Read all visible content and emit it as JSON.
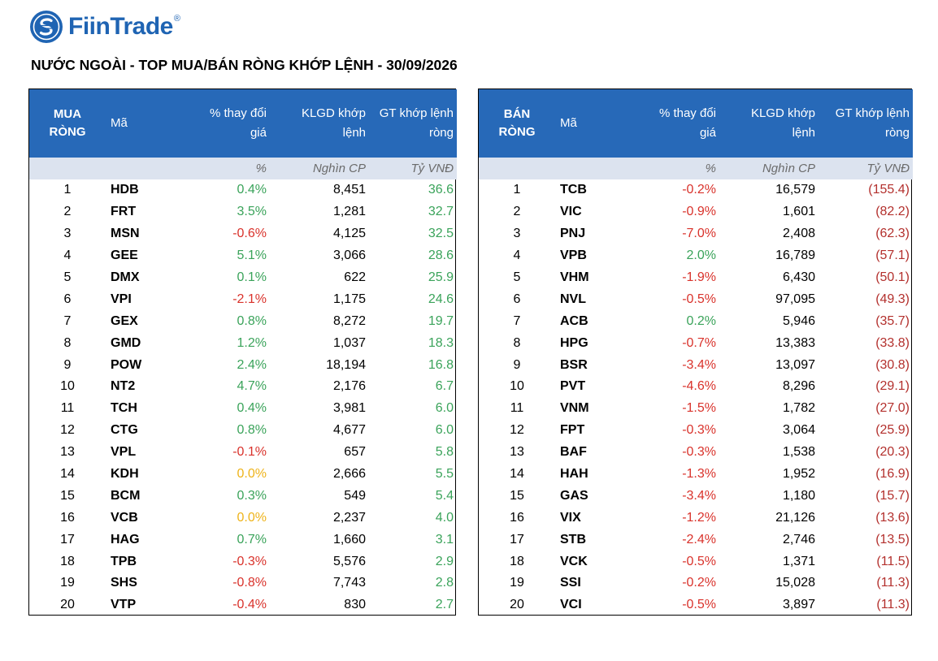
{
  "brand": {
    "name": "FiinTrade",
    "registered_mark": "®"
  },
  "report_title": "NƯỚC NGOÀI - TOP MUA/BÁN RÒNG KHỚP LỆNH - 30/09/2026",
  "colors": {
    "header_bg": "#2769b8",
    "units_bg": "#dce3ef",
    "positive": "#3aa35a",
    "negative": "#d9322b",
    "unchanged": "#eeb31a",
    "sell_value": "#b3302d",
    "brand": "#1f64b3"
  },
  "buy": {
    "headers": {
      "rank_line1": "MUA",
      "rank_line2": "RÒNG",
      "code": "Mã",
      "pct_line1": "% thay đổi",
      "pct_line2": "giá",
      "vol_line1": "KLGD khớp",
      "vol_line2": "lệnh",
      "val_line1": "GT khớp lệnh",
      "val_line2": "ròng"
    },
    "units": {
      "pct": "%",
      "vol": "Nghìn CP",
      "val": "Tỷ VNĐ"
    },
    "rows": [
      {
        "rank": "1",
        "code": "HDB",
        "pct": "0.4%",
        "dir": "pos",
        "vol": "8,451",
        "val": "36.6"
      },
      {
        "rank": "2",
        "code": "FRT",
        "pct": "3.5%",
        "dir": "pos",
        "vol": "1,281",
        "val": "32.7"
      },
      {
        "rank": "3",
        "code": "MSN",
        "pct": "-0.6%",
        "dir": "neg",
        "vol": "4,125",
        "val": "32.5"
      },
      {
        "rank": "4",
        "code": "GEE",
        "pct": "5.1%",
        "dir": "pos",
        "vol": "3,066",
        "val": "28.6"
      },
      {
        "rank": "5",
        "code": "DMX",
        "pct": "0.1%",
        "dir": "pos",
        "vol": "622",
        "val": "25.9"
      },
      {
        "rank": "6",
        "code": "VPI",
        "pct": "-2.1%",
        "dir": "neg",
        "vol": "1,175",
        "val": "24.6"
      },
      {
        "rank": "7",
        "code": "GEX",
        "pct": "0.8%",
        "dir": "pos",
        "vol": "8,272",
        "val": "19.7"
      },
      {
        "rank": "8",
        "code": "GMD",
        "pct": "1.2%",
        "dir": "pos",
        "vol": "1,037",
        "val": "18.3"
      },
      {
        "rank": "9",
        "code": "POW",
        "pct": "2.4%",
        "dir": "pos",
        "vol": "18,194",
        "val": "16.8"
      },
      {
        "rank": "10",
        "code": "NT2",
        "pct": "4.7%",
        "dir": "pos",
        "vol": "2,176",
        "val": "6.7"
      },
      {
        "rank": "11",
        "code": "TCH",
        "pct": "0.4%",
        "dir": "pos",
        "vol": "3,981",
        "val": "6.0"
      },
      {
        "rank": "12",
        "code": "CTG",
        "pct": "0.8%",
        "dir": "pos",
        "vol": "4,677",
        "val": "6.0"
      },
      {
        "rank": "13",
        "code": "VPL",
        "pct": "-0.1%",
        "dir": "neg",
        "vol": "657",
        "val": "5.8"
      },
      {
        "rank": "14",
        "code": "KDH",
        "pct": "0.0%",
        "dir": "zero",
        "vol": "2,666",
        "val": "5.5"
      },
      {
        "rank": "15",
        "code": "BCM",
        "pct": "0.3%",
        "dir": "pos",
        "vol": "549",
        "val": "5.4"
      },
      {
        "rank": "16",
        "code": "VCB",
        "pct": "0.0%",
        "dir": "zero",
        "vol": "2,237",
        "val": "4.0"
      },
      {
        "rank": "17",
        "code": "HAG",
        "pct": "0.7%",
        "dir": "pos",
        "vol": "1,660",
        "val": "3.1"
      },
      {
        "rank": "18",
        "code": "TPB",
        "pct": "-0.3%",
        "dir": "neg",
        "vol": "5,576",
        "val": "2.9"
      },
      {
        "rank": "19",
        "code": "SHS",
        "pct": "-0.8%",
        "dir": "neg",
        "vol": "7,743",
        "val": "2.8"
      },
      {
        "rank": "20",
        "code": "VTP",
        "pct": "-0.4%",
        "dir": "neg",
        "vol": "830",
        "val": "2.7"
      }
    ]
  },
  "sell": {
    "headers": {
      "rank_line1": "BÁN",
      "rank_line2": "RÒNG",
      "code": "Mã",
      "pct_line1": "% thay đổi",
      "pct_line2": "giá",
      "vol_line1": "KLGD khớp",
      "vol_line2": "lệnh",
      "val_line1": "GT khớp lệnh",
      "val_line2": "ròng"
    },
    "units": {
      "pct": "%",
      "vol": "Nghìn CP",
      "val": "Tỷ VNĐ"
    },
    "rows": [
      {
        "rank": "1",
        "code": "TCB",
        "pct": "-0.2%",
        "dir": "neg",
        "vol": "16,579",
        "val": "(155.4)"
      },
      {
        "rank": "2",
        "code": "VIC",
        "pct": "-0.9%",
        "dir": "neg",
        "vol": "1,601",
        "val": "(82.2)"
      },
      {
        "rank": "3",
        "code": "PNJ",
        "pct": "-7.0%",
        "dir": "neg",
        "vol": "2,408",
        "val": "(62.3)"
      },
      {
        "rank": "4",
        "code": "VPB",
        "pct": "2.0%",
        "dir": "pos",
        "vol": "16,789",
        "val": "(57.1)"
      },
      {
        "rank": "5",
        "code": "VHM",
        "pct": "-1.9%",
        "dir": "neg",
        "vol": "6,430",
        "val": "(50.1)"
      },
      {
        "rank": "6",
        "code": "NVL",
        "pct": "-0.5%",
        "dir": "neg",
        "vol": "97,095",
        "val": "(49.3)"
      },
      {
        "rank": "7",
        "code": "ACB",
        "pct": "0.2%",
        "dir": "pos",
        "vol": "5,946",
        "val": "(35.7)"
      },
      {
        "rank": "8",
        "code": "HPG",
        "pct": "-0.7%",
        "dir": "neg",
        "vol": "13,383",
        "val": "(33.8)"
      },
      {
        "rank": "9",
        "code": "BSR",
        "pct": "-3.4%",
        "dir": "neg",
        "vol": "13,097",
        "val": "(30.8)"
      },
      {
        "rank": "10",
        "code": "PVT",
        "pct": "-4.6%",
        "dir": "neg",
        "vol": "8,296",
        "val": "(29.1)"
      },
      {
        "rank": "11",
        "code": "VNM",
        "pct": "-1.5%",
        "dir": "neg",
        "vol": "1,782",
        "val": "(27.0)"
      },
      {
        "rank": "12",
        "code": "FPT",
        "pct": "-0.3%",
        "dir": "neg",
        "vol": "3,064",
        "val": "(25.9)"
      },
      {
        "rank": "13",
        "code": "BAF",
        "pct": "-0.3%",
        "dir": "neg",
        "vol": "1,538",
        "val": "(20.3)"
      },
      {
        "rank": "14",
        "code": "HAH",
        "pct": "-1.3%",
        "dir": "neg",
        "vol": "1,952",
        "val": "(16.9)"
      },
      {
        "rank": "15",
        "code": "GAS",
        "pct": "-3.4%",
        "dir": "neg",
        "vol": "1,180",
        "val": "(15.7)"
      },
      {
        "rank": "16",
        "code": "VIX",
        "pct": "-1.2%",
        "dir": "neg",
        "vol": "21,126",
        "val": "(13.6)"
      },
      {
        "rank": "17",
        "code": "STB",
        "pct": "-2.4%",
        "dir": "neg",
        "vol": "2,746",
        "val": "(13.5)"
      },
      {
        "rank": "18",
        "code": "VCK",
        "pct": "-0.5%",
        "dir": "neg",
        "vol": "1,371",
        "val": "(11.5)"
      },
      {
        "rank": "19",
        "code": "SSI",
        "pct": "-0.2%",
        "dir": "neg",
        "vol": "15,028",
        "val": "(11.3)"
      },
      {
        "rank": "20",
        "code": "VCI",
        "pct": "-0.5%",
        "dir": "neg",
        "vol": "3,897",
        "val": "(11.3)"
      }
    ]
  }
}
